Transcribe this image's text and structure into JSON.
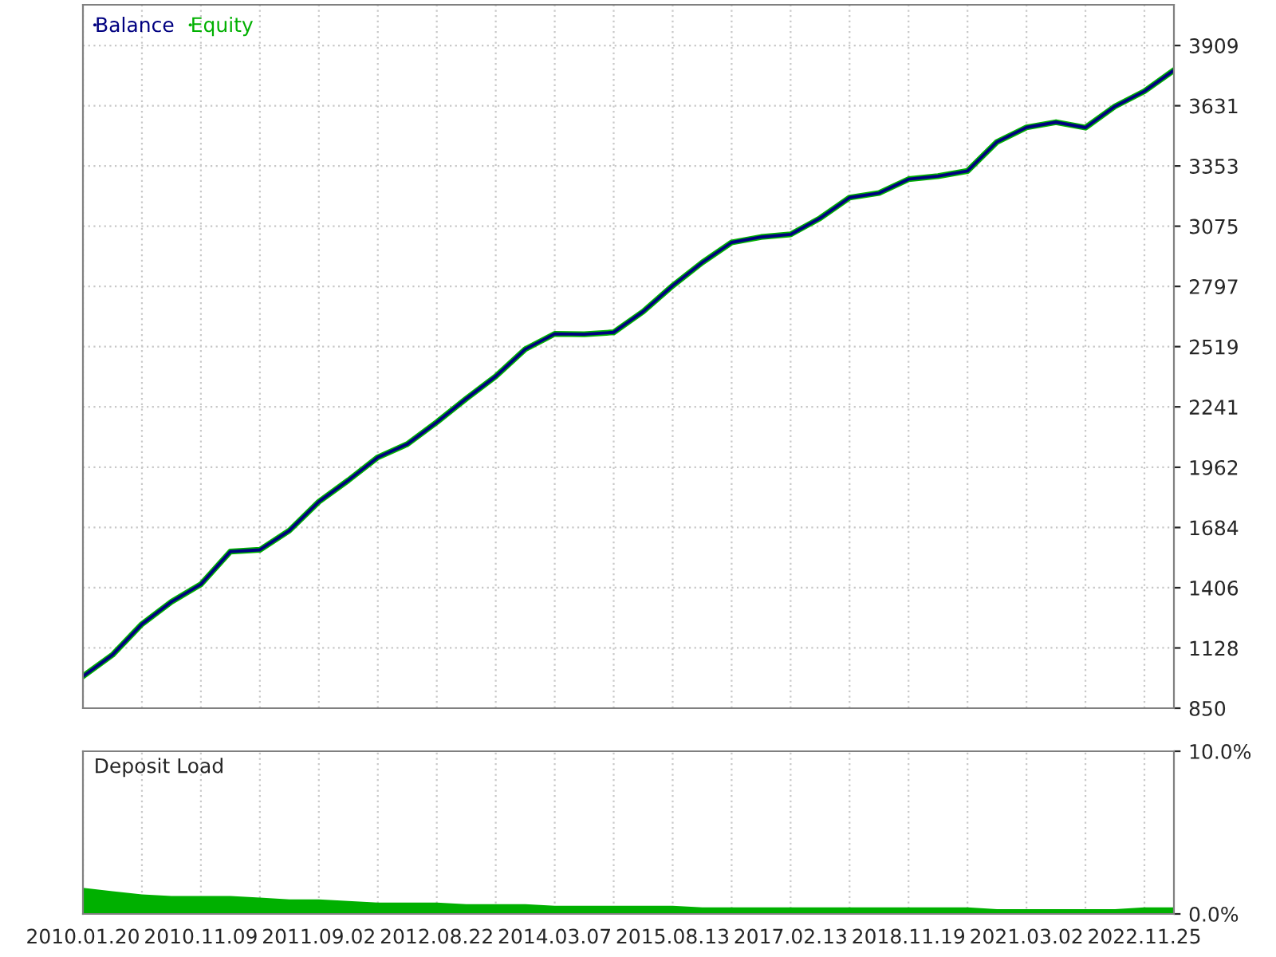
{
  "chart_data": [
    {
      "type": "line",
      "legend": "top left",
      "grid": true,
      "tick_labels": "y",
      "categories": [
        "2010.01.20",
        null,
        null,
        null,
        "2010.11.09",
        null,
        null,
        null,
        "2011.09.02",
        null,
        null,
        null,
        "2012.08.22",
        null,
        null,
        null,
        "2014.03.07",
        null,
        null,
        null,
        "2015.08.13",
        null,
        null,
        null,
        "2017.02.13",
        null,
        null,
        null,
        "2018.11.19",
        null,
        null,
        null,
        "2021.03.02",
        null,
        null,
        null,
        "2022.11.25",
        null
      ],
      "series": [
        {
          "name": "Equity",
          "color": "#00b000",
          "values": [
            997,
            1096,
            1238,
            1341,
            1422,
            1573,
            1581,
            1670,
            1803,
            1902,
            2008,
            2069,
            2170,
            2279,
            2382,
            2507,
            2578,
            2576,
            2585,
            2681,
            2800,
            2907,
            3000,
            3025,
            3037,
            3112,
            3207,
            3228,
            3292,
            3306,
            3330,
            3464,
            3531,
            3555,
            3530,
            3628,
            3698,
            3795
          ]
        },
        {
          "name": "Balance",
          "color": "#000080",
          "values": [
            997,
            1096,
            1238,
            1341,
            1422,
            1573,
            1581,
            1670,
            1803,
            1902,
            2008,
            2069,
            2170,
            2279,
            2382,
            2507,
            2578,
            2576,
            2585,
            2681,
            2800,
            2907,
            3000,
            3025,
            3037,
            3112,
            3207,
            3228,
            3292,
            3306,
            3330,
            3464,
            3531,
            3555,
            3530,
            3628,
            3698,
            3795
          ]
        }
      ],
      "ylim": [
        850,
        4097
      ],
      "yticks": [
        850,
        1128,
        1406,
        1684,
        1962,
        2241,
        2519,
        2797,
        3075,
        3353,
        3631,
        3909
      ]
    },
    {
      "type": "area",
      "title": "Deposit Load",
      "grid": "x",
      "categories": [
        "2010.01.20",
        null,
        null,
        null,
        "2010.11.09",
        null,
        null,
        null,
        "2011.09.02",
        null,
        null,
        null,
        "2012.08.22",
        null,
        null,
        null,
        "2014.03.07",
        null,
        null,
        null,
        "2015.08.13",
        null,
        null,
        null,
        "2017.02.13",
        null,
        null,
        null,
        "2018.11.19",
        null,
        null,
        null,
        "2021.03.02",
        null,
        null,
        null,
        "2022.11.25",
        null
      ],
      "series": [
        {
          "color": "#00b000",
          "values": [
            1.6,
            1.4,
            1.2,
            1.1,
            1.1,
            1.1,
            1.0,
            0.9,
            0.9,
            0.8,
            0.7,
            0.7,
            0.7,
            0.6,
            0.6,
            0.6,
            0.5,
            0.5,
            0.5,
            0.5,
            0.5,
            0.4,
            0.4,
            0.4,
            0.4,
            0.4,
            0.4,
            0.4,
            0.4,
            0.4,
            0.4,
            0.3,
            0.3,
            0.3,
            0.3,
            0.3,
            0.4,
            0.4
          ]
        }
      ],
      "ylim": [
        0,
        10
      ],
      "yticks": [
        {
          "value": 0,
          "label": "0.0%"
        },
        {
          "value": 10,
          "label": "10.0%"
        }
      ]
    }
  ]
}
